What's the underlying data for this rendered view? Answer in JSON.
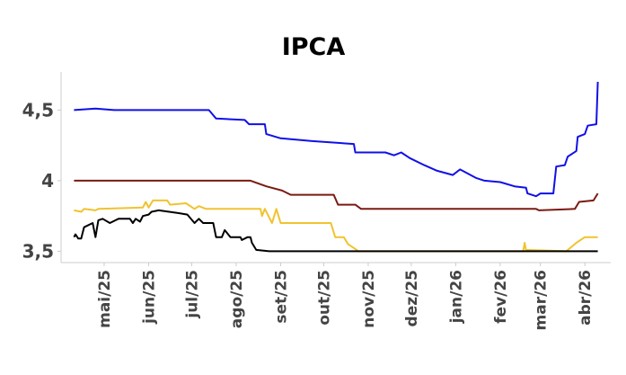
{
  "chart_data": {
    "type": "line",
    "title": "IPCA",
    "xlabel": "",
    "ylabel": "",
    "xlim": [
      "2025-04-01",
      "2026-04-19"
    ],
    "ylim": [
      3.42,
      4.77
    ],
    "grid": false,
    "x_ticks": [
      {
        "date": "2025-05-01",
        "label": "mai/25"
      },
      {
        "date": "2025-06-01",
        "label": "jun/25"
      },
      {
        "date": "2025-07-01",
        "label": "jul/25"
      },
      {
        "date": "2025-08-01",
        "label": "ago/25"
      },
      {
        "date": "2025-09-01",
        "label": "set/25"
      },
      {
        "date": "2025-10-01",
        "label": "out/25"
      },
      {
        "date": "2025-11-01",
        "label": "nov/25"
      },
      {
        "date": "2025-12-01",
        "label": "dez/25"
      },
      {
        "date": "2026-01-01",
        "label": "jan/26"
      },
      {
        "date": "2026-02-01",
        "label": "fev/26"
      },
      {
        "date": "2026-03-01",
        "label": "mar/26"
      },
      {
        "date": "2026-04-01",
        "label": "abr/26"
      }
    ],
    "y_ticks": [
      {
        "value": 3.5,
        "label": "3,5"
      },
      {
        "value": 4.0,
        "label": "4"
      },
      {
        "value": 4.5,
        "label": "4,5"
      }
    ],
    "series": [
      {
        "color": "#1010e8",
        "points": [
          [
            "2025-04-10",
            4.5
          ],
          [
            "2025-04-25",
            4.51
          ],
          [
            "2025-05-08",
            4.5
          ],
          [
            "2025-07-13",
            4.5
          ],
          [
            "2025-07-18",
            4.44
          ],
          [
            "2025-08-07",
            4.43
          ],
          [
            "2025-08-10",
            4.4
          ],
          [
            "2025-08-21",
            4.4
          ],
          [
            "2025-08-22",
            4.33
          ],
          [
            "2025-09-01",
            4.3
          ],
          [
            "2025-09-23",
            4.28
          ],
          [
            "2025-10-22",
            4.26
          ],
          [
            "2025-10-23",
            4.2
          ],
          [
            "2025-11-13",
            4.2
          ],
          [
            "2025-11-19",
            4.18
          ],
          [
            "2025-11-24",
            4.2
          ],
          [
            "2025-11-30",
            4.16
          ],
          [
            "2025-12-10",
            4.11
          ],
          [
            "2025-12-19",
            4.07
          ],
          [
            "2025-12-30",
            4.04
          ],
          [
            "2026-01-04",
            4.08
          ],
          [
            "2026-01-15",
            4.02
          ],
          [
            "2026-01-21",
            4.0
          ],
          [
            "2026-02-01",
            3.99
          ],
          [
            "2026-02-11",
            3.96
          ],
          [
            "2026-02-19",
            3.95
          ],
          [
            "2026-02-20",
            3.91
          ],
          [
            "2026-02-26",
            3.89
          ],
          [
            "2026-03-01",
            3.91
          ],
          [
            "2026-03-10",
            3.91
          ],
          [
            "2026-03-12",
            4.1
          ],
          [
            "2026-03-18",
            4.11
          ],
          [
            "2026-03-20",
            4.17
          ],
          [
            "2026-03-26",
            4.21
          ],
          [
            "2026-03-27",
            4.31
          ],
          [
            "2026-04-01",
            4.33
          ],
          [
            "2026-04-03",
            4.39
          ],
          [
            "2026-04-09",
            4.4
          ],
          [
            "2026-04-10",
            4.7
          ]
        ]
      },
      {
        "color": "#7a1a12",
        "points": [
          [
            "2025-04-10",
            4.0
          ],
          [
            "2025-08-11",
            4.0
          ],
          [
            "2025-08-22",
            3.96
          ],
          [
            "2025-09-02",
            3.93
          ],
          [
            "2025-09-08",
            3.9
          ],
          [
            "2025-10-08",
            3.9
          ],
          [
            "2025-10-11",
            3.83
          ],
          [
            "2025-10-23",
            3.83
          ],
          [
            "2025-10-27",
            3.8
          ],
          [
            "2026-02-26",
            3.8
          ],
          [
            "2026-02-28",
            3.79
          ],
          [
            "2026-03-25",
            3.8
          ],
          [
            "2026-03-28",
            3.85
          ],
          [
            "2026-04-07",
            3.86
          ],
          [
            "2026-04-10",
            3.91
          ]
        ]
      },
      {
        "color": "#f0c330",
        "points": [
          [
            "2025-04-10",
            3.79
          ],
          [
            "2025-04-15",
            3.78
          ],
          [
            "2025-04-17",
            3.8
          ],
          [
            "2025-04-25",
            3.79
          ],
          [
            "2025-04-27",
            3.8
          ],
          [
            "2025-05-28",
            3.81
          ],
          [
            "2025-05-30",
            3.85
          ],
          [
            "2025-06-01",
            3.81
          ],
          [
            "2025-06-04",
            3.86
          ],
          [
            "2025-06-14",
            3.86
          ],
          [
            "2025-06-16",
            3.83
          ],
          [
            "2025-06-27",
            3.84
          ],
          [
            "2025-07-03",
            3.8
          ],
          [
            "2025-07-06",
            3.82
          ],
          [
            "2025-07-11",
            3.8
          ],
          [
            "2025-08-18",
            3.8
          ],
          [
            "2025-08-19",
            3.75
          ],
          [
            "2025-08-21",
            3.8
          ],
          [
            "2025-08-26",
            3.7
          ],
          [
            "2025-08-29",
            3.8
          ],
          [
            "2025-09-01",
            3.7
          ],
          [
            "2025-10-06",
            3.7
          ],
          [
            "2025-10-09",
            3.6
          ],
          [
            "2025-10-15",
            3.6
          ],
          [
            "2025-10-18",
            3.55
          ],
          [
            "2025-10-24",
            3.51
          ],
          [
            "2025-10-25",
            3.5
          ],
          [
            "2026-02-17",
            3.5
          ],
          [
            "2026-02-18",
            3.56
          ],
          [
            "2026-02-19",
            3.51
          ],
          [
            "2026-03-19",
            3.5
          ],
          [
            "2026-03-26",
            3.56
          ],
          [
            "2026-04-01",
            3.6
          ],
          [
            "2026-04-10",
            3.6
          ]
        ]
      },
      {
        "color": "#000000",
        "points": [
          [
            "2025-04-10",
            3.6
          ],
          [
            "2025-04-11",
            3.62
          ],
          [
            "2025-04-13",
            3.59
          ],
          [
            "2025-04-15",
            3.59
          ],
          [
            "2025-04-17",
            3.67
          ],
          [
            "2025-04-23",
            3.7
          ],
          [
            "2025-04-25",
            3.6
          ],
          [
            "2025-04-27",
            3.72
          ],
          [
            "2025-04-30",
            3.73
          ],
          [
            "2025-05-05",
            3.7
          ],
          [
            "2025-05-11",
            3.73
          ],
          [
            "2025-05-19",
            3.73
          ],
          [
            "2025-05-21",
            3.7
          ],
          [
            "2025-05-23",
            3.73
          ],
          [
            "2025-05-26",
            3.71
          ],
          [
            "2025-05-28",
            3.75
          ],
          [
            "2025-06-01",
            3.76
          ],
          [
            "2025-06-03",
            3.78
          ],
          [
            "2025-06-08",
            3.79
          ],
          [
            "2025-06-22",
            3.77
          ],
          [
            "2025-06-28",
            3.76
          ],
          [
            "2025-07-03",
            3.7
          ],
          [
            "2025-07-06",
            3.73
          ],
          [
            "2025-07-09",
            3.7
          ],
          [
            "2025-07-16",
            3.7
          ],
          [
            "2025-07-18",
            3.6
          ],
          [
            "2025-07-22",
            3.6
          ],
          [
            "2025-07-24",
            3.65
          ],
          [
            "2025-07-28",
            3.6
          ],
          [
            "2025-08-04",
            3.6
          ],
          [
            "2025-08-05",
            3.58
          ],
          [
            "2025-08-09",
            3.6
          ],
          [
            "2025-08-11",
            3.6
          ],
          [
            "2025-08-12",
            3.56
          ],
          [
            "2025-08-15",
            3.51
          ],
          [
            "2025-08-24",
            3.5
          ],
          [
            "2026-04-10",
            3.5
          ]
        ]
      }
    ]
  }
}
